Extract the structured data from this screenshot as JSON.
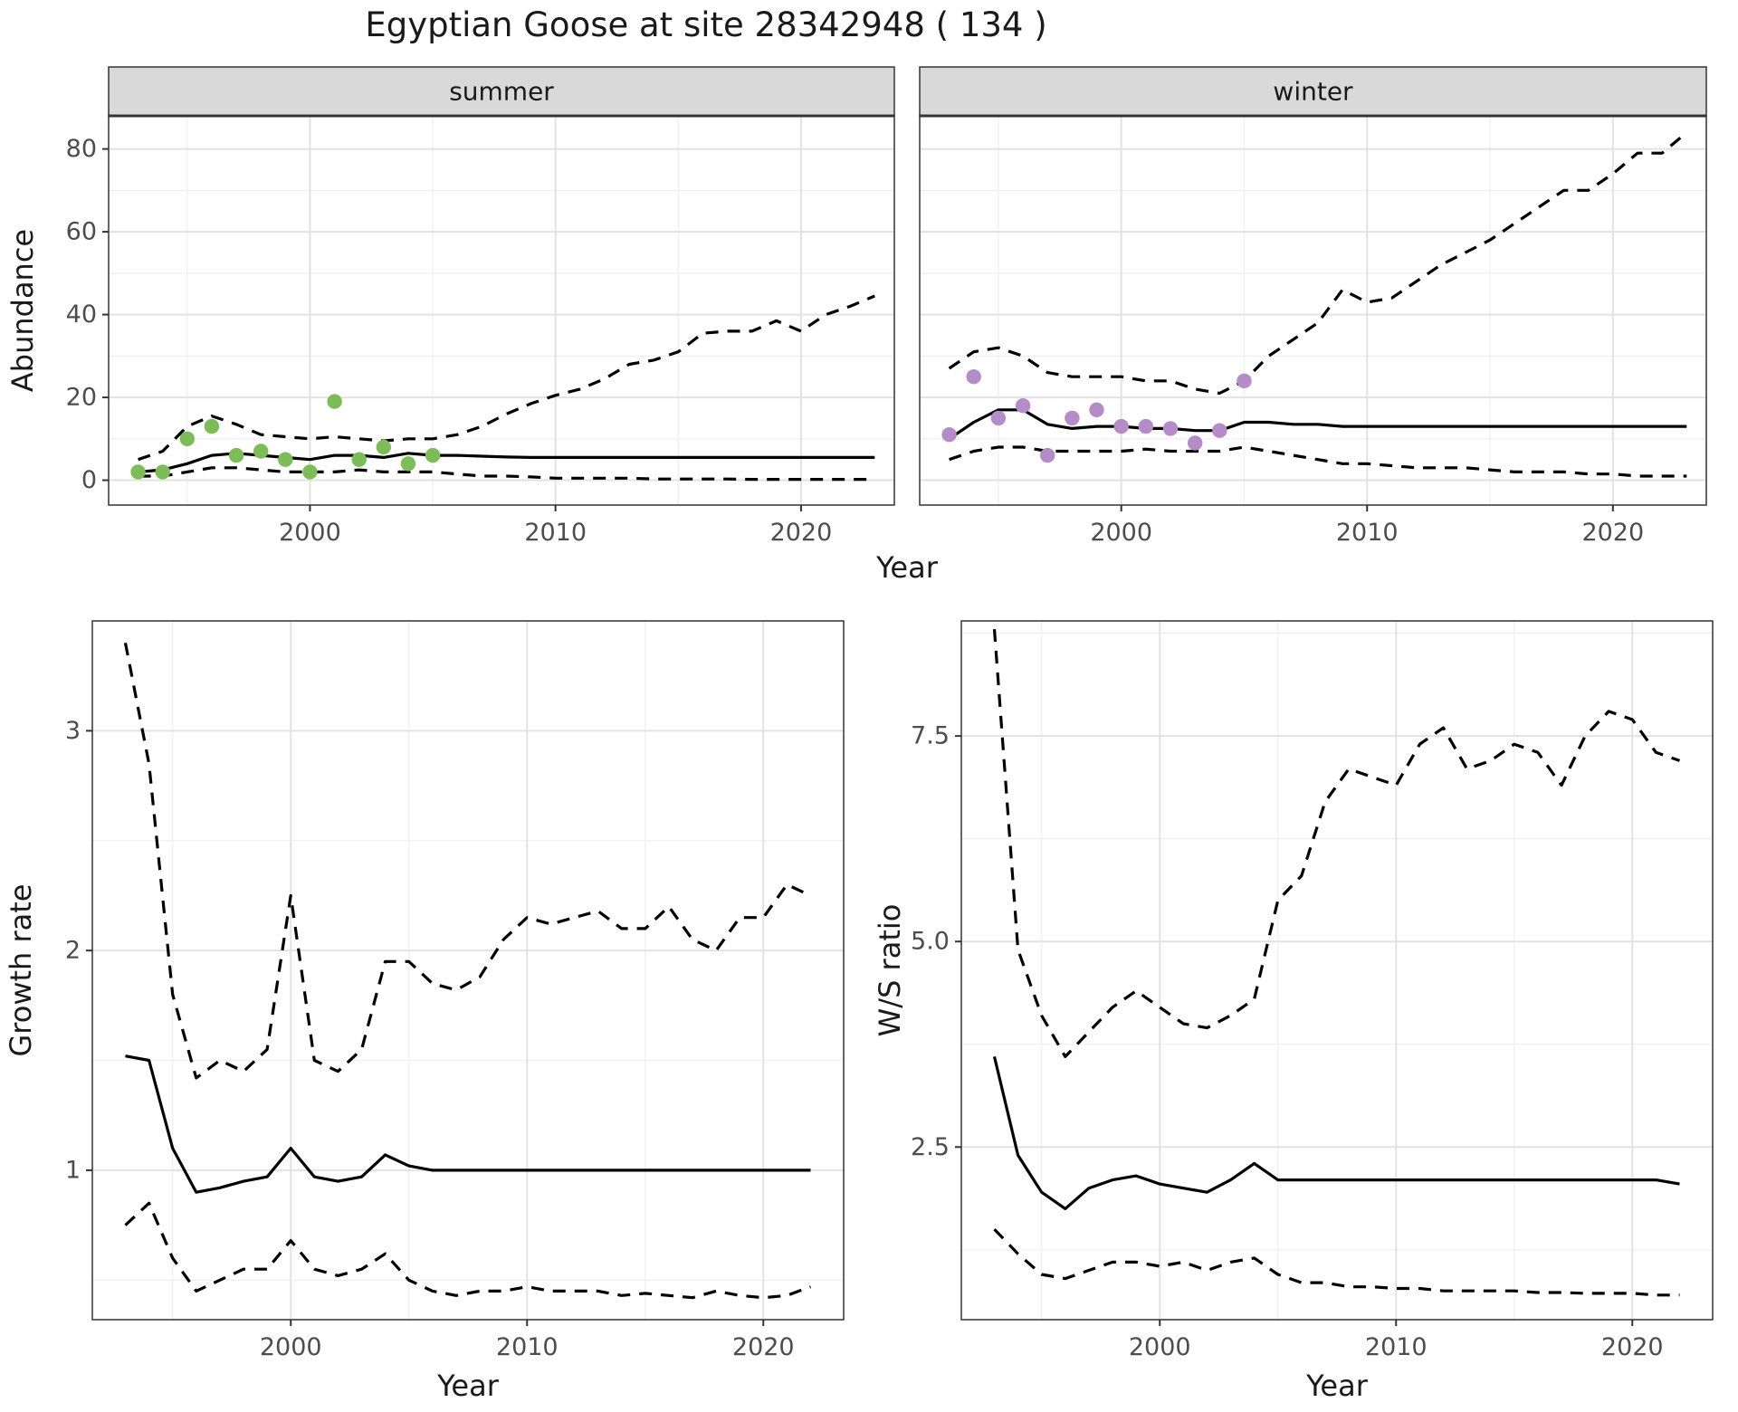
{
  "title": "Egyptian Goose at site 28342948 ( 134 )",
  "colors": {
    "background": "#ffffff",
    "line": "#000000",
    "grid_major": "#e2e2e2",
    "grid_minor": "#f0f0f0",
    "panel_border": "#404040",
    "strip_bg": "#d9d9d9",
    "strip_border": "#333333",
    "axis_text": "#4d4d4d",
    "label_text": "#1a1a1a",
    "tick_mark": "#333333",
    "summer_points": "#7dbd58",
    "winter_points": "#b48cc8"
  },
  "chart_data": [
    {
      "id": "abundance",
      "type": "line",
      "title": "",
      "xlabel": "Year",
      "ylabel": "Abundance",
      "xlim": [
        1991.8,
        2023.8
      ],
      "ylim": [
        -6,
        88
      ],
      "x_ticks": [
        2000,
        2010,
        2020
      ],
      "x_minor": [
        1995,
        2005,
        2015
      ],
      "y_ticks": [
        0,
        20,
        40,
        60,
        80
      ],
      "y_tick_labels": [
        "0",
        "20",
        "40",
        "60",
        "80"
      ],
      "y_minor": [
        10,
        30,
        50,
        70
      ],
      "grid": true,
      "legend": "none",
      "facets": [
        {
          "label": "summer",
          "point_color": "#7dbd58",
          "years": [
            1993,
            1994,
            1995,
            1996,
            1997,
            1998,
            1999,
            2000,
            2001,
            2002,
            2003,
            2004,
            2005,
            2006,
            2007,
            2008,
            2009,
            2010,
            2011,
            2012,
            2013,
            2014,
            2015,
            2016,
            2017,
            2018,
            2019,
            2020,
            2021,
            2022,
            2023
          ],
          "series": [
            {
              "name": "upper_ci",
              "style": "dashed",
              "values": [
                5,
                7,
                13,
                15.5,
                13.5,
                11,
                10.5,
                10,
                10.5,
                10,
                9.5,
                10,
                10,
                11,
                13,
                16,
                18.5,
                20.5,
                22,
                24.5,
                28,
                29,
                31,
                35.5,
                36,
                36,
                38.5,
                36,
                40,
                42,
                44.5
              ]
            },
            {
              "name": "estimate",
              "style": "solid",
              "values": [
                2,
                2.5,
                4,
                6,
                6.5,
                6,
                5.5,
                5,
                6,
                6,
                5.5,
                6.5,
                6,
                6,
                5.8,
                5.6,
                5.5,
                5.5,
                5.5,
                5.5,
                5.5,
                5.5,
                5.5,
                5.5,
                5.5,
                5.5,
                5.5,
                5.5,
                5.5,
                5.5,
                5.5
              ]
            },
            {
              "name": "lower_ci",
              "style": "dashed",
              "values": [
                1,
                1,
                2,
                3,
                3,
                2.5,
                2,
                2,
                2,
                2.5,
                2,
                2,
                2,
                1.5,
                1,
                1,
                0.8,
                0.5,
                0.5,
                0.5,
                0.5,
                0.3,
                0.3,
                0.3,
                0.3,
                0.2,
                0.2,
                0.2,
                0.2,
                0.2,
                0.2
              ]
            }
          ],
          "points": [
            [
              1993,
              2
            ],
            [
              1994,
              2
            ],
            [
              1995,
              10
            ],
            [
              1996,
              13
            ],
            [
              1997,
              6
            ],
            [
              1998,
              7
            ],
            [
              1999,
              5
            ],
            [
              2000,
              2
            ],
            [
              2001,
              19
            ],
            [
              2002,
              5
            ],
            [
              2003,
              8
            ],
            [
              2004,
              4
            ],
            [
              2005,
              6
            ]
          ]
        },
        {
          "label": "winter",
          "point_color": "#b48cc8",
          "years": [
            1993,
            1994,
            1995,
            1996,
            1997,
            1998,
            1999,
            2000,
            2001,
            2002,
            2003,
            2004,
            2005,
            2006,
            2007,
            2008,
            2009,
            2010,
            2011,
            2012,
            2013,
            2014,
            2015,
            2016,
            2017,
            2018,
            2019,
            2020,
            2021,
            2022,
            2023
          ],
          "series": [
            {
              "name": "upper_ci",
              "style": "dashed",
              "values": [
                27,
                31,
                32,
                30,
                26,
                25,
                25,
                25,
                24,
                24,
                22,
                21,
                24,
                30,
                34,
                38,
                46,
                43,
                44,
                48,
                52,
                55,
                58,
                62,
                66,
                70,
                70,
                74,
                79,
                79,
                84
              ]
            },
            {
              "name": "estimate",
              "style": "solid",
              "values": [
                10,
                14,
                17,
                17,
                13.5,
                12.5,
                13,
                13,
                12.5,
                12.5,
                12,
                12,
                14,
                14,
                13.5,
                13.5,
                13,
                13,
                13,
                13,
                13,
                13,
                13,
                13,
                13,
                13,
                13,
                13,
                13,
                13,
                13
              ]
            },
            {
              "name": "lower_ci",
              "style": "dashed",
              "values": [
                5,
                7,
                8,
                8,
                7,
                7,
                7,
                7,
                7.5,
                7,
                7,
                7,
                8,
                7,
                6,
                5,
                4,
                4,
                3.5,
                3,
                3,
                3,
                2.5,
                2,
                2,
                2,
                1.5,
                1.5,
                1,
                1,
                1
              ]
            }
          ],
          "points": [
            [
              1993,
              11
            ],
            [
              1994,
              25
            ],
            [
              1995,
              15
            ],
            [
              1996,
              18
            ],
            [
              1997,
              6
            ],
            [
              1998,
              15
            ],
            [
              1999,
              17
            ],
            [
              2000,
              13
            ],
            [
              2001,
              13
            ],
            [
              2002,
              12.5
            ],
            [
              2003,
              9
            ],
            [
              2004,
              12
            ],
            [
              2005,
              24
            ]
          ]
        }
      ]
    },
    {
      "id": "growth",
      "type": "line",
      "title": "",
      "xlabel": "Year",
      "ylabel": "Growth rate",
      "xlim": [
        1991.6,
        2023.4
      ],
      "ylim": [
        0.32,
        3.5
      ],
      "x_ticks": [
        2000,
        2010,
        2020
      ],
      "x_minor": [
        1995,
        2005,
        2015
      ],
      "y_ticks": [
        1,
        2,
        3
      ],
      "y_tick_labels": [
        "1",
        "2",
        "3"
      ],
      "y_minor": [
        0.5,
        1.5,
        2.5
      ],
      "grid": true,
      "legend": "none",
      "facets": [
        {
          "label": null,
          "point_color": null,
          "years": [
            1993,
            1994,
            1995,
            1996,
            1997,
            1998,
            1999,
            2000,
            2001,
            2002,
            2003,
            2004,
            2005,
            2006,
            2007,
            2008,
            2009,
            2010,
            2011,
            2012,
            2013,
            2014,
            2015,
            2016,
            2017,
            2018,
            2019,
            2020,
            2021,
            2022
          ],
          "series": [
            {
              "name": "upper_ci",
              "style": "dashed",
              "values": [
                3.4,
                2.85,
                1.8,
                1.42,
                1.5,
                1.45,
                1.55,
                2.25,
                1.5,
                1.45,
                1.55,
                1.95,
                1.95,
                1.85,
                1.82,
                1.88,
                2.05,
                2.15,
                2.12,
                2.15,
                2.18,
                2.1,
                2.1,
                2.2,
                2.05,
                2.0,
                2.15,
                2.15,
                2.3,
                2.25
              ]
            },
            {
              "name": "estimate",
              "style": "solid",
              "values": [
                1.52,
                1.5,
                1.1,
                0.9,
                0.92,
                0.95,
                0.97,
                1.1,
                0.97,
                0.95,
                0.97,
                1.07,
                1.02,
                1.0,
                1.0,
                1.0,
                1.0,
                1.0,
                1.0,
                1.0,
                1.0,
                1.0,
                1.0,
                1.0,
                1.0,
                1.0,
                1.0,
                1.0,
                1.0,
                1.0
              ]
            },
            {
              "name": "lower_ci",
              "style": "dashed",
              "values": [
                0.75,
                0.85,
                0.6,
                0.45,
                0.5,
                0.55,
                0.55,
                0.68,
                0.55,
                0.52,
                0.55,
                0.62,
                0.5,
                0.45,
                0.43,
                0.45,
                0.45,
                0.47,
                0.45,
                0.45,
                0.45,
                0.43,
                0.44,
                0.43,
                0.42,
                0.45,
                0.43,
                0.42,
                0.43,
                0.47
              ]
            }
          ],
          "points": []
        }
      ]
    },
    {
      "id": "ws_ratio",
      "type": "line",
      "title": "",
      "xlabel": "Year",
      "ylabel": "W/S ratio",
      "xlim": [
        1991.6,
        2023.4
      ],
      "ylim": [
        0.4,
        8.9
      ],
      "x_ticks": [
        2000,
        2010,
        2020
      ],
      "x_minor": [
        1995,
        2005,
        2015
      ],
      "y_ticks": [
        2.5,
        5.0,
        7.5
      ],
      "y_tick_labels": [
        "2.5",
        "5.0",
        "7.5"
      ],
      "y_minor": [
        1.25,
        3.75,
        6.25,
        8.75
      ],
      "grid": true,
      "legend": "none",
      "facets": [
        {
          "label": null,
          "point_color": null,
          "years": [
            1993,
            1994,
            1995,
            1996,
            1997,
            1998,
            1999,
            2000,
            2001,
            2002,
            2003,
            2004,
            2005,
            2006,
            2007,
            2008,
            2009,
            2010,
            2011,
            2012,
            2013,
            2014,
            2015,
            2016,
            2017,
            2018,
            2019,
            2020,
            2021,
            2022
          ],
          "series": [
            {
              "name": "upper_ci",
              "style": "dashed",
              "values": [
                8.8,
                4.9,
                4.1,
                3.6,
                3.9,
                4.2,
                4.4,
                4.2,
                4.0,
                3.95,
                4.1,
                4.3,
                5.5,
                5.8,
                6.7,
                7.1,
                7.0,
                6.9,
                7.4,
                7.6,
                7.1,
                7.2,
                7.4,
                7.3,
                6.9,
                7.5,
                7.8,
                7.7,
                7.3,
                7.2
              ]
            },
            {
              "name": "estimate",
              "style": "solid",
              "values": [
                3.6,
                2.4,
                1.95,
                1.75,
                2.0,
                2.1,
                2.15,
                2.05,
                2.0,
                1.95,
                2.1,
                2.3,
                2.1,
                2.1,
                2.1,
                2.1,
                2.1,
                2.1,
                2.1,
                2.1,
                2.1,
                2.1,
                2.1,
                2.1,
                2.1,
                2.1,
                2.1,
                2.1,
                2.1,
                2.05
              ]
            },
            {
              "name": "lower_ci",
              "style": "dashed",
              "values": [
                1.5,
                1.2,
                0.95,
                0.9,
                1.0,
                1.1,
                1.1,
                1.05,
                1.1,
                1.0,
                1.1,
                1.15,
                0.95,
                0.85,
                0.85,
                0.8,
                0.8,
                0.78,
                0.78,
                0.75,
                0.75,
                0.75,
                0.75,
                0.73,
                0.73,
                0.72,
                0.72,
                0.72,
                0.7,
                0.7
              ]
            }
          ],
          "points": []
        }
      ]
    }
  ]
}
